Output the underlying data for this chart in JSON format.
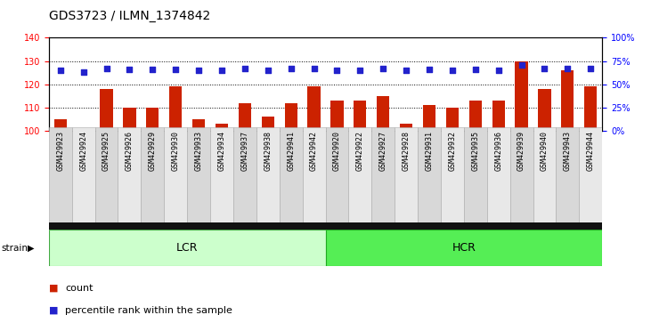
{
  "title": "GDS3723 / ILMN_1374842",
  "categories": [
    "GSM429923",
    "GSM429924",
    "GSM429925",
    "GSM429926",
    "GSM429929",
    "GSM429930",
    "GSM429933",
    "GSM429934",
    "GSM429937",
    "GSM429938",
    "GSM429941",
    "GSM429942",
    "GSM429920",
    "GSM429922",
    "GSM429927",
    "GSM429928",
    "GSM429931",
    "GSM429932",
    "GSM429935",
    "GSM429936",
    "GSM429939",
    "GSM429940",
    "GSM429943",
    "GSM429944"
  ],
  "count_values": [
    105,
    101,
    118,
    110,
    110,
    119,
    105,
    103,
    112,
    106,
    112,
    119,
    113,
    113,
    115,
    103,
    111,
    110,
    113,
    113,
    130,
    118,
    126,
    119
  ],
  "percentile_values": [
    65,
    63,
    67,
    66,
    66,
    66,
    65,
    65,
    67,
    65,
    67,
    67,
    65,
    65,
    67,
    65,
    66,
    65,
    66,
    65,
    71,
    67,
    67,
    67
  ],
  "n_lcr": 12,
  "n_hcr": 12,
  "bar_color": "#cc2200",
  "dot_color": "#2222cc",
  "lcr_color": "#ccffcc",
  "hcr_color": "#55ee55",
  "ylim_left": [
    100,
    140
  ],
  "ylim_right": [
    0,
    100
  ],
  "yticks_left": [
    100,
    110,
    120,
    130,
    140
  ],
  "yticks_right": [
    0,
    25,
    50,
    75,
    100
  ],
  "grid_values": [
    110,
    120,
    130
  ],
  "legend_count": "count",
  "legend_pct": "percentile rank within the sample",
  "title_fontsize": 10,
  "tick_fontsize": 6,
  "strain_label": "strain"
}
